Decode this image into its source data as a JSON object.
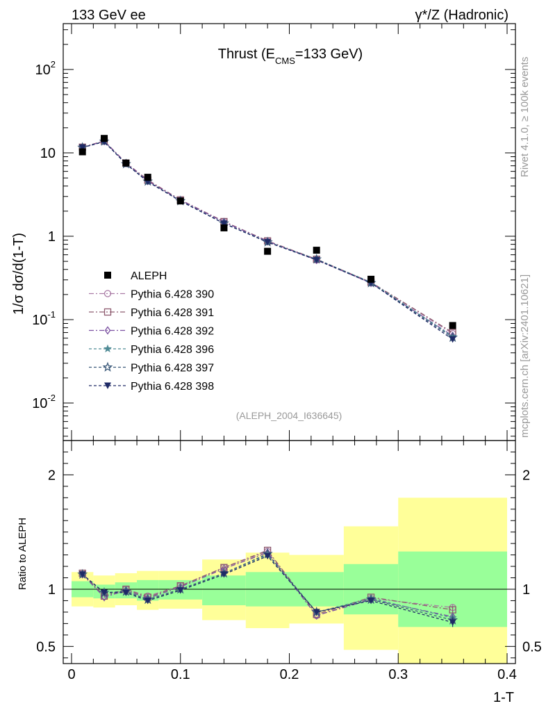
{
  "header": {
    "left_label": "133 GeV ee",
    "right_label": "γ*/Z (Hadronic)"
  },
  "side_labels": {
    "rivet": "Rivet 4.1.0, ≥ 100k events",
    "mcplots": "mcplots.cern.ch [arXiv:2401.10621]"
  },
  "colors": {
    "band_inner": "#99ff99",
    "band_outer": "#ffff99",
    "data": "#000000"
  },
  "chart_data": [
    {
      "type": "line",
      "scale": "log",
      "title": "Thrust (E_CMS=133 GeV)",
      "title_parts": {
        "main": "Thrust (E",
        "sub": "CMS",
        "rest": "=133 GeV)"
      },
      "ylabel": "1/σ  dσ/d(1-T)",
      "xlim": [
        0,
        0.4
      ],
      "ylim_decades": [
        -2.45,
        2.55
      ],
      "y_ticks": [
        {
          "label": "10",
          "exp": "-2",
          "value": -2
        },
        {
          "label": "10",
          "exp": "-1",
          "value": -1
        },
        {
          "label": "1",
          "exp": "",
          "value": 0
        },
        {
          "label": "10",
          "exp": "",
          "value": 1
        },
        {
          "label": "10",
          "exp": "2",
          "value": 2
        }
      ],
      "analysis_id": "(ALEPH_2004_I636645)",
      "data_x": [
        0.01,
        0.03,
        0.05,
        0.07,
        0.1,
        0.14,
        0.18,
        0.225,
        0.275,
        0.35
      ],
      "data": {
        "name": "ALEPH",
        "values": [
          10.3,
          14.9,
          7.55,
          5.1,
          2.65,
          1.26,
          0.66,
          0.68,
          0.305,
          0.085
        ]
      },
      "series": [
        {
          "name": "Pythia 6.428 390",
          "color": "#a97aa5",
          "marker": "circle-open",
          "dash": "7,3,2,3",
          "values": [
            11.7,
            13.9,
            7.6,
            4.75,
            2.73,
            1.5,
            0.88,
            0.52,
            0.28,
            0.068
          ]
        },
        {
          "name": "Pythia 6.428 391",
          "color": "#8e5a6e",
          "marker": "square-open",
          "dash": "7,3,2,3",
          "values": [
            11.7,
            13.9,
            7.55,
            4.7,
            2.73,
            1.5,
            0.88,
            0.53,
            0.28,
            0.07
          ]
        },
        {
          "name": "Pythia 6.428 392",
          "color": "#7a4fa0",
          "marker": "diamond-open",
          "dash": "7,3,2,3",
          "values": [
            11.6,
            13.8,
            7.5,
            4.6,
            2.7,
            1.48,
            0.87,
            0.52,
            0.275,
            0.064
          ]
        },
        {
          "name": "Pythia 6.428 396",
          "color": "#4e8a95",
          "marker": "star-filled",
          "dash": "4,3",
          "values": [
            11.6,
            13.7,
            7.35,
            4.55,
            2.65,
            1.43,
            0.86,
            0.53,
            0.28,
            0.063
          ]
        },
        {
          "name": "Pythia 6.428 397",
          "color": "#3c5a7a",
          "marker": "star-open",
          "dash": "4,3",
          "values": [
            11.6,
            13.7,
            7.35,
            4.55,
            2.65,
            1.43,
            0.85,
            0.53,
            0.275,
            0.061
          ]
        },
        {
          "name": "Pythia 6.428 398",
          "color": "#1f2a66",
          "marker": "triangle-down-filled",
          "dash": "4,3",
          "values": [
            11.6,
            13.6,
            7.35,
            4.5,
            2.64,
            1.42,
            0.85,
            0.52,
            0.275,
            0.058
          ]
        }
      ]
    },
    {
      "type": "line",
      "title": "",
      "ylabel": "Ratio to ALEPH",
      "xlabel": "1-T",
      "xlim": [
        0,
        0.4
      ],
      "ylim": [
        0.35,
        2.3
      ],
      "x_ticks": [
        {
          "label": "0",
          "value": 0
        },
        {
          "label": "0.1",
          "value": 0.1
        },
        {
          "label": "0.2",
          "value": 0.2
        },
        {
          "label": "0.3",
          "value": 0.3
        },
        {
          "label": "0.4",
          "value": 0.4
        }
      ],
      "y_ticks": [
        {
          "label": "0.5",
          "value": 0.5
        },
        {
          "label": "1",
          "value": 1
        },
        {
          "label": "2",
          "value": 2
        }
      ],
      "reference_line": 1,
      "bins": [
        {
          "lo": 0.0,
          "hi": 0.02,
          "inner": [
            0.93,
            1.07
          ],
          "outer": [
            0.85,
            1.15
          ]
        },
        {
          "lo": 0.02,
          "hi": 0.04,
          "inner": [
            0.92,
            1.04
          ],
          "outer": [
            0.84,
            1.12
          ]
        },
        {
          "lo": 0.04,
          "hi": 0.06,
          "inner": [
            0.92,
            1.06
          ],
          "outer": [
            0.86,
            1.14
          ]
        },
        {
          "lo": 0.06,
          "hi": 0.08,
          "inner": [
            0.9,
            1.08
          ],
          "outer": [
            0.82,
            1.16
          ]
        },
        {
          "lo": 0.08,
          "hi": 0.12,
          "inner": [
            0.91,
            1.08
          ],
          "outer": [
            0.83,
            1.16
          ]
        },
        {
          "lo": 0.12,
          "hi": 0.16,
          "inner": [
            0.86,
            1.12
          ],
          "outer": [
            0.73,
            1.26
          ]
        },
        {
          "lo": 0.16,
          "hi": 0.2,
          "inner": [
            0.85,
            1.15
          ],
          "outer": [
            0.66,
            1.32
          ]
        },
        {
          "lo": 0.2,
          "hi": 0.25,
          "inner": [
            0.85,
            1.15
          ],
          "outer": [
            0.7,
            1.3
          ]
        },
        {
          "lo": 0.25,
          "hi": 0.3,
          "inner": [
            0.78,
            1.22
          ],
          "outer": [
            0.47,
            1.55
          ]
        },
        {
          "lo": 0.3,
          "hi": 0.4,
          "inner": [
            0.67,
            1.33
          ],
          "outer": [
            0.35,
            1.8
          ]
        }
      ],
      "series": [
        {
          "name": "Pythia 6.428 390",
          "values": [
            1.14,
            0.94,
            1.0,
            0.94,
            1.03,
            1.19,
            1.33,
            0.77,
            0.92,
            0.84
          ],
          "errors": [
            0,
            0,
            0,
            0,
            0,
            0,
            0,
            0,
            0.02,
            0.03
          ]
        },
        {
          "name": "Pythia 6.428 391",
          "values": [
            1.14,
            0.94,
            1.0,
            0.93,
            1.03,
            1.19,
            1.34,
            0.78,
            0.93,
            0.82
          ],
          "errors": [
            0,
            0,
            0,
            0,
            0,
            0,
            0,
            0,
            0.02,
            0.03
          ]
        },
        {
          "name": "Pythia 6.428 392",
          "values": [
            1.13,
            0.93,
            0.99,
            0.92,
            1.02,
            1.18,
            1.32,
            0.77,
            0.91,
            0.76
          ],
          "errors": [
            0,
            0,
            0,
            0,
            0,
            0,
            0,
            0,
            0.02,
            0.03
          ]
        },
        {
          "name": "Pythia 6.428 396",
          "values": [
            1.13,
            0.97,
            0.98,
            0.91,
            1.0,
            1.14,
            1.3,
            0.8,
            0.92,
            0.75
          ],
          "errors": [
            0,
            0,
            0,
            0,
            0,
            0,
            0,
            0,
            0.02,
            0.03
          ]
        },
        {
          "name": "Pythia 6.428 397",
          "values": [
            1.13,
            0.97,
            0.98,
            0.91,
            1.0,
            1.14,
            1.31,
            0.8,
            0.91,
            0.73
          ],
          "errors": [
            0,
            0,
            0,
            0,
            0,
            0,
            0,
            0,
            0.02,
            0.03
          ]
        },
        {
          "name": "Pythia 6.428 398",
          "values": [
            1.13,
            0.97,
            0.97,
            0.9,
            0.99,
            1.13,
            1.29,
            0.8,
            0.9,
            0.71
          ],
          "errors": [
            0,
            0,
            0,
            0,
            0,
            0,
            0,
            0,
            0.02,
            0.04
          ]
        }
      ]
    }
  ]
}
